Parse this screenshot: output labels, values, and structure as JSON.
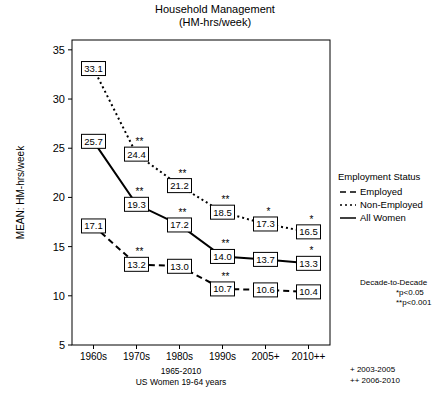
{
  "chart_data": {
    "type": "line",
    "title": "Household Management",
    "subtitle": "(HM-hrs/week)",
    "y_label": "MEAN: HM-hrs/week",
    "x_label": [
      "1965-2010",
      "US Women 19-64 years"
    ],
    "categories": [
      "1960s",
      "1970s",
      "1980s",
      "1990s",
      "2005+",
      "2010++"
    ],
    "series": [
      {
        "name": "Employed",
        "color": "#000000",
        "line_style": "dashed",
        "values": [
          17.1,
          13.2,
          13.0,
          10.7,
          10.6,
          10.4
        ],
        "value_labels": [
          "17.1",
          "13.2",
          "13.0",
          "10.7",
          "10.6",
          "10.4"
        ],
        "significance": [
          null,
          "**",
          null,
          "**",
          null,
          null
        ]
      },
      {
        "name": "Non-Employed",
        "color": "#000000",
        "line_style": "dotted",
        "values": [
          33.1,
          24.4,
          21.2,
          18.5,
          17.3,
          16.5
        ],
        "value_labels": [
          "33.1",
          "24.4",
          "21.2",
          "18.5",
          "17.3",
          "16.5"
        ],
        "significance": [
          null,
          "**",
          "**",
          "**",
          "*",
          "*"
        ]
      },
      {
        "name": "All Women",
        "color": "#000000",
        "line_style": "solid",
        "values": [
          25.7,
          19.3,
          17.2,
          14.0,
          13.7,
          13.3
        ],
        "value_labels": [
          "25.7",
          "19.3",
          "17.2",
          "14.0",
          "13.7",
          "13.3"
        ],
        "significance": [
          null,
          "**",
          "**",
          "**",
          null,
          "*"
        ]
      }
    ],
    "ylim": [
      5,
      36
    ],
    "yticks": [
      5,
      10,
      15,
      20,
      25,
      30,
      35
    ],
    "grid": false,
    "legend": "right",
    "data_labels": true,
    "legend_title": "Employment Status",
    "annotations": [
      "Decade-to-Decade",
      "*p<0.05",
      "**p<0.001"
    ],
    "footnotes": [
      "+ 2003-2005",
      "++ 2006-2010"
    ]
  }
}
